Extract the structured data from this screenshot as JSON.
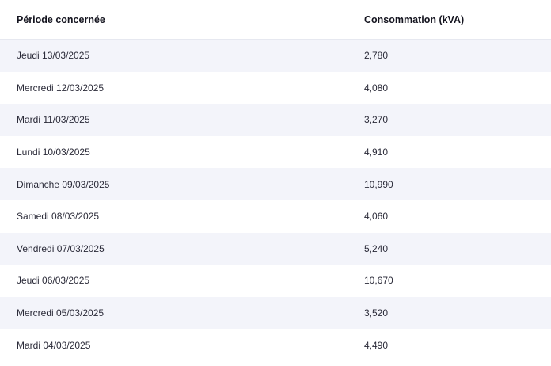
{
  "table": {
    "headers": {
      "period": "Période concernée",
      "consumption": "Consommation (kVA)"
    },
    "rows": [
      {
        "period": "Jeudi 13/03/2025",
        "value": "2,780"
      },
      {
        "period": "Mercredi 12/03/2025",
        "value": "4,080"
      },
      {
        "period": "Mardi 11/03/2025",
        "value": "3,270"
      },
      {
        "period": "Lundi 10/03/2025",
        "value": "4,910"
      },
      {
        "period": "Dimanche 09/03/2025",
        "value": "10,990"
      },
      {
        "period": "Samedi 08/03/2025",
        "value": "4,060"
      },
      {
        "period": "Vendredi 07/03/2025",
        "value": "5,240"
      },
      {
        "period": "Jeudi 06/03/2025",
        "value": "10,670"
      },
      {
        "period": "Mercredi 05/03/2025",
        "value": "3,520"
      },
      {
        "period": "Mardi 04/03/2025",
        "value": "4,490"
      }
    ]
  },
  "colors": {
    "stripe": "#f3f4fa",
    "text": "#2a2a38",
    "header_text": "#14141f"
  }
}
